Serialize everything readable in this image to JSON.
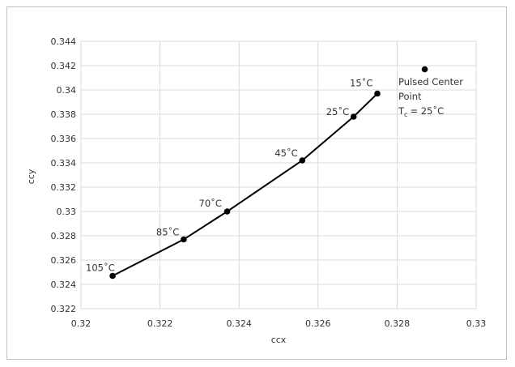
{
  "chart_data": {
    "type": "scatter",
    "xlabel": "ccx",
    "ylabel": "ccy",
    "xlim": [
      0.32,
      0.33
    ],
    "ylim": [
      0.322,
      0.344
    ],
    "x_ticks": [
      "0.32",
      "0.322",
      "0.324",
      "0.326",
      "0.328",
      "0.33"
    ],
    "y_ticks": [
      "0.322",
      "0.324",
      "0.326",
      "0.328",
      "0.33",
      "0.332",
      "0.334",
      "0.336",
      "0.338",
      "0.34",
      "0.342",
      "0.344"
    ],
    "grid": true,
    "series": [
      {
        "points": [
          {
            "x": 0.3208,
            "y": 0.3247,
            "label": "105˚C"
          },
          {
            "x": 0.3226,
            "y": 0.3277,
            "label": "85˚C"
          },
          {
            "x": 0.3237,
            "y": 0.33,
            "label": "70˚C"
          },
          {
            "x": 0.3256,
            "y": 0.3342,
            "label": "45˚C"
          },
          {
            "x": 0.3269,
            "y": 0.3378,
            "label": "25˚C"
          },
          {
            "x": 0.3275,
            "y": 0.3397,
            "label": "15˚C"
          }
        ],
        "color": "#000000",
        "line": true
      },
      {
        "points": [
          {
            "x": 0.3287,
            "y": 0.3417
          }
        ],
        "color": "#000000",
        "line": false
      }
    ],
    "annotation": {
      "line1": "Pulsed Center",
      "line2": "Point",
      "line3_prefix": "T",
      "line3_sub": "c",
      "line3_suffix": "= 25˚C"
    }
  }
}
